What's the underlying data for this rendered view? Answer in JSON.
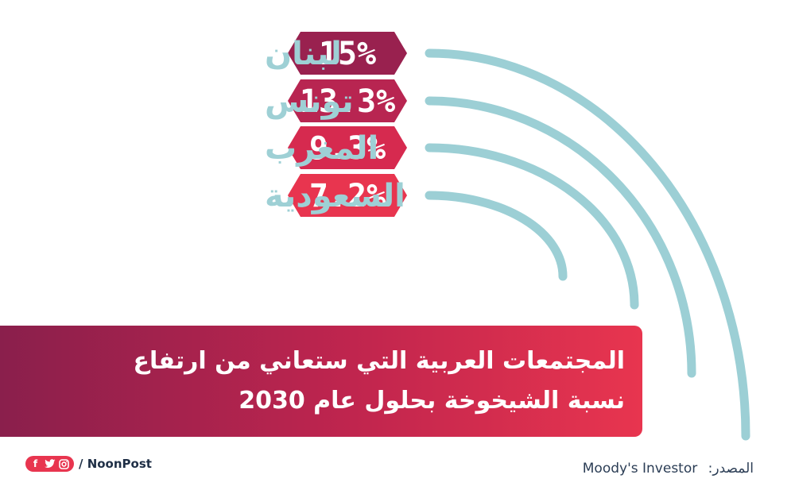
{
  "chart_data": {
    "type": "bar",
    "categories": [
      "لبنان",
      "تونس",
      "المغرب",
      "السعودية"
    ],
    "value_labels": [
      "15%",
      "13.3%",
      "9.3%",
      "7.2%"
    ],
    "values": [
      15,
      13.3,
      9.3,
      7.2
    ],
    "colors": {
      "badges": [
        "#99214f",
        "#b82551",
        "#d62a4f",
        "#e8354f"
      ],
      "arcs": "#9ccfd5",
      "labels": "#9ed0d5"
    }
  },
  "banner": {
    "line1": "المجتمعات العربية التي ستعاني من ارتفاع",
    "line2": "نسبة الشيخوخة بحلول عام 2030"
  },
  "source": {
    "label": "المصدر:",
    "name": "Moody's Investor"
  },
  "brand": {
    "name": "/ NoonPost",
    "social_icons": [
      "facebook-icon",
      "twitter-icon",
      "instagram-icon"
    ]
  }
}
